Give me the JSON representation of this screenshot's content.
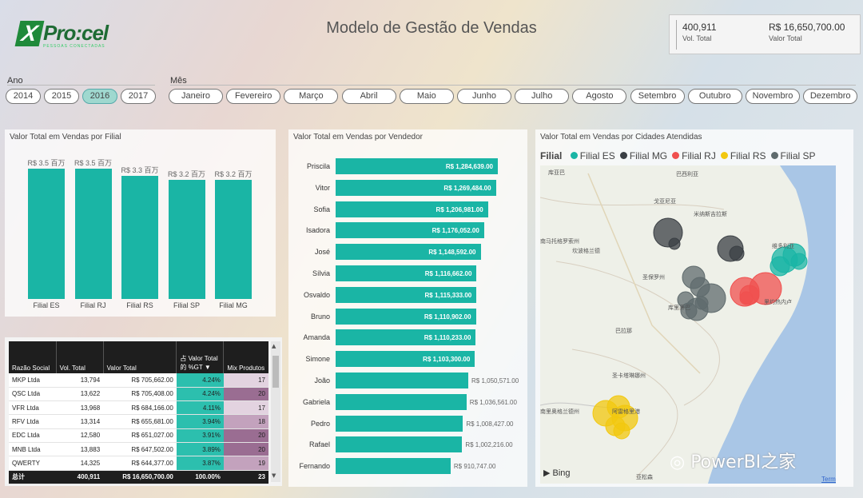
{
  "header": {
    "logo_letter": "X",
    "logo_text": "Pro:cel",
    "logo_sub": "PESSOAS CONECTADAS",
    "title": "Modelo de Gestão de Vendas"
  },
  "kpis": [
    {
      "value": "400,911",
      "label": "Vol. Total"
    },
    {
      "value": "R$ 16,650,700.00",
      "label": "Valor Total"
    }
  ],
  "slicers": {
    "ano": {
      "label": "Ano",
      "options": [
        "2014",
        "2015",
        "2016",
        "2017"
      ],
      "selected": "2016"
    },
    "mes": {
      "label": "Mês",
      "options": [
        "Janeiro",
        "Fevereiro",
        "Março",
        "Abril",
        "Maio",
        "Junho",
        "Julho",
        "Agosto",
        "Setembro",
        "Outubro",
        "Novembro",
        "Dezembro"
      ]
    }
  },
  "filial_chart": {
    "title": "Valor Total em Vendas por Filial",
    "bars": [
      {
        "label": "Filial ES",
        "value_label": "R$ 3.5 百万",
        "value": 3.5
      },
      {
        "label": "Filial RJ",
        "value_label": "R$ 3.5 百万",
        "value": 3.5
      },
      {
        "label": "Filial RS",
        "value_label": "R$ 3.3 百万",
        "value": 3.3
      },
      {
        "label": "Filial SP",
        "value_label": "R$ 3.2 百万",
        "value": 3.2
      },
      {
        "label": "Filial MG",
        "value_label": "R$ 3.2 百万",
        "value": 3.2
      }
    ]
  },
  "table": {
    "headers": [
      "Razão Social",
      "Vol. Total",
      "Valor Total",
      "占 Valor Total 的 %GT",
      "Mix Produtos"
    ],
    "rows": [
      [
        "MKP Ltda",
        "13,794",
        "R$ 705,662.00",
        "4.24%",
        "17"
      ],
      [
        "QSC Ltda",
        "13,622",
        "R$ 705,408.00",
        "4.24%",
        "20"
      ],
      [
        "VFR Ltda",
        "13,968",
        "R$ 684,166.00",
        "4.11%",
        "17"
      ],
      [
        "RFV Ltda",
        "13,314",
        "R$ 655,681.00",
        "3.94%",
        "18"
      ],
      [
        "EDC Ltda",
        "12,580",
        "R$ 651,027.00",
        "3.91%",
        "20"
      ],
      [
        "MNB Ltda",
        "13,883",
        "R$ 647,502.00",
        "3.89%",
        "20"
      ],
      [
        "QWERTY",
        "14,325",
        "R$ 644,377.00",
        "3.87%",
        "19"
      ]
    ],
    "total": [
      "总计",
      "400,911",
      "R$ 16,650,700.00",
      "100.00%",
      "23"
    ]
  },
  "vendedor_chart": {
    "title": "Valor Total em Vendas por Vendedor",
    "rows": [
      {
        "name": "Priscila",
        "label": "R$ 1,284,639.00",
        "value": 1284639
      },
      {
        "name": "Vitor",
        "label": "R$ 1,269,484.00",
        "value": 1269484
      },
      {
        "name": "Sofia",
        "label": "R$ 1,206,981.00",
        "value": 1206981
      },
      {
        "name": "Isadora",
        "label": "R$ 1,176,052.00",
        "value": 1176052
      },
      {
        "name": "José",
        "label": "R$ 1,148,592.00",
        "value": 1148592
      },
      {
        "name": "Sílvia",
        "label": "R$ 1,116,662.00",
        "value": 1116662
      },
      {
        "name": "Osvaldo",
        "label": "R$ 1,115,333.00",
        "value": 1115333
      },
      {
        "name": "Bruno",
        "label": "R$ 1,110,902.00",
        "value": 1110902
      },
      {
        "name": "Amanda",
        "label": "R$ 1,110,233.00",
        "value": 1110233
      },
      {
        "name": "Simone",
        "label": "R$ 1,103,300.00",
        "value": 1103300
      },
      {
        "name": "João",
        "label": "R$ 1,050,571.00",
        "value": 1050571
      },
      {
        "name": "Gabriela",
        "label": "R$ 1,036,561.00",
        "value": 1036561
      },
      {
        "name": "Pedro",
        "label": "R$ 1,008,427.00",
        "value": 1008427
      },
      {
        "name": "Rafael",
        "label": "R$ 1,002,216.00",
        "value": 1002216
      },
      {
        "name": "Fernando",
        "label": "R$ 910,747.00",
        "value": 910747
      }
    ]
  },
  "map": {
    "title": "Valor Total em Vendas por Cidades Atendidas",
    "legend_title": "Filial",
    "legend": [
      {
        "name": "Filial ES",
        "color": "#1ab5a5"
      },
      {
        "name": "Filial MG",
        "color": "#3a3f44"
      },
      {
        "name": "Filial RJ",
        "color": "#f0504f"
      },
      {
        "name": "Filial RS",
        "color": "#f2c80f"
      },
      {
        "name": "Filial SP",
        "color": "#5f6b6d"
      }
    ],
    "place_labels": [
      "库亚巴",
      "巴西利亚",
      "戈亚尼亚",
      "米纳斯吉拉斯",
      "南马托格罗索州",
      "坎波格兰德",
      "圣保罗州",
      "库里蒂巴",
      "巴拉那",
      "维多利亚",
      "里约热内卢",
      "圣卡塔琳娜州",
      "南里奥格兰德州",
      "阿雷格里港",
      "亚松森"
    ],
    "bing": "Bing",
    "terms": "Terms"
  },
  "watermark": "PowerBI之家"
}
